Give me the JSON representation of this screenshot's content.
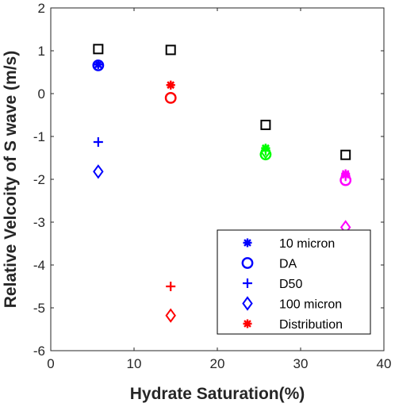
{
  "chart_data": {
    "type": "scatter",
    "title": "",
    "xlabel": "Hydrate Saturation(%)",
    "ylabel": "Relative Velcoity of S wave (m/s)",
    "xlim": [
      0,
      40
    ],
    "ylim": [
      -6,
      2
    ],
    "xticks": [
      "0",
      "10",
      "20",
      "30",
      "40"
    ],
    "yticks": [
      "2",
      "1",
      "0",
      "-1",
      "-2",
      "-3",
      "-4",
      "-5",
      "-6"
    ],
    "grid": false,
    "legend_position": "bottom-right",
    "point_colors": {
      "group1": "#0000ff",
      "group2": "#ff0000",
      "group3": "#00ff00",
      "group4": "#ff00ff"
    },
    "series": [
      {
        "name": "10 micron",
        "marker": "asterisk",
        "points": [
          [
            5.7,
            0.68
          ],
          [
            14.4,
            0.2
          ],
          [
            25.8,
            -1.28
          ],
          [
            35.4,
            -1.9
          ]
        ]
      },
      {
        "name": "DA",
        "marker": "circle",
        "points": [
          [
            5.7,
            0.66
          ],
          [
            14.4,
            -0.1
          ],
          [
            25.8,
            -1.42
          ],
          [
            35.4,
            -2.02
          ]
        ]
      },
      {
        "name": "D50",
        "marker": "plus",
        "points": [
          [
            5.7,
            -1.13
          ],
          [
            14.4,
            -4.5
          ],
          [
            25.8,
            -1.33
          ],
          [
            35.4,
            -1.93
          ]
        ]
      },
      {
        "name": "100 micron",
        "marker": "diamond",
        "points": [
          [
            5.7,
            -1.82
          ],
          [
            14.4,
            -5.18
          ],
          [
            25.8,
            -1.36
          ],
          [
            35.4,
            -3.12
          ]
        ]
      },
      {
        "name": "Distribution",
        "marker": "asterisk",
        "points": [
          [
            5.7,
            0.68
          ],
          [
            14.4,
            0.2
          ],
          [
            25.8,
            -1.27
          ],
          [
            35.4,
            -1.87
          ]
        ]
      },
      {
        "name": "",
        "marker": "square",
        "color": "#000000",
        "points": [
          [
            5.7,
            1.04
          ],
          [
            14.4,
            1.02
          ],
          [
            25.8,
            -0.73
          ],
          [
            35.4,
            -1.43
          ]
        ]
      }
    ]
  }
}
